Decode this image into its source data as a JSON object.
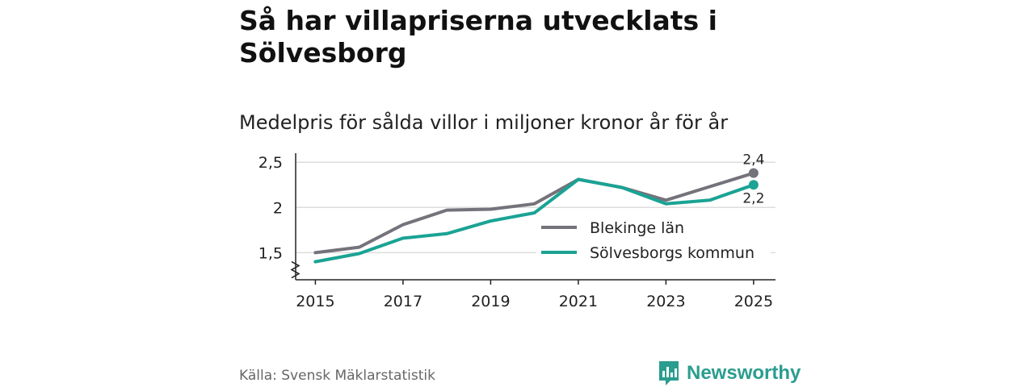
{
  "title": "Så har villapriserna utvecklats i Sölvesborg",
  "subtitle": "Medelpris för sålda villor i miljoner kronor år för år",
  "source": "Källa: Svensk Mäklarstatistik",
  "brand": {
    "name": "Newsworthy",
    "icon": "newsworthy-logo-icon",
    "color": "#2a9d8f"
  },
  "chart_data": {
    "type": "line",
    "title": "Så har villapriserna utvecklats i Sölvesborg",
    "subtitle": "Medelpris för sålda villor i miljoner kronor år för år",
    "xlabel": "",
    "ylabel": "",
    "x": [
      2015,
      2016,
      2017,
      2018,
      2019,
      2020,
      2021,
      2022,
      2023,
      2024,
      2025
    ],
    "xticks": [
      "2015",
      "2017",
      "2019",
      "2021",
      "2023",
      "2025"
    ],
    "yticks": [
      1.5,
      2,
      2.5
    ],
    "ytick_labels": [
      "1,5",
      "2",
      "2,5"
    ],
    "ylim": [
      1.2,
      2.6
    ],
    "xlim": [
      2014.55,
      2025.5
    ],
    "grid": true,
    "legend_position": "center-right",
    "series": [
      {
        "name": "Blekinge län",
        "color": "#75727b",
        "values": [
          1.5,
          1.56,
          1.81,
          1.97,
          1.98,
          2.04,
          2.31,
          2.22,
          2.08,
          2.23,
          2.38
        ],
        "end_label": "2,4"
      },
      {
        "name": "Sölvesborgs kommun",
        "color": "#1aa394",
        "values": [
          1.4,
          1.49,
          1.66,
          1.71,
          1.85,
          1.94,
          2.31,
          2.22,
          2.04,
          2.08,
          2.25
        ],
        "end_label": "2,2"
      }
    ]
  }
}
